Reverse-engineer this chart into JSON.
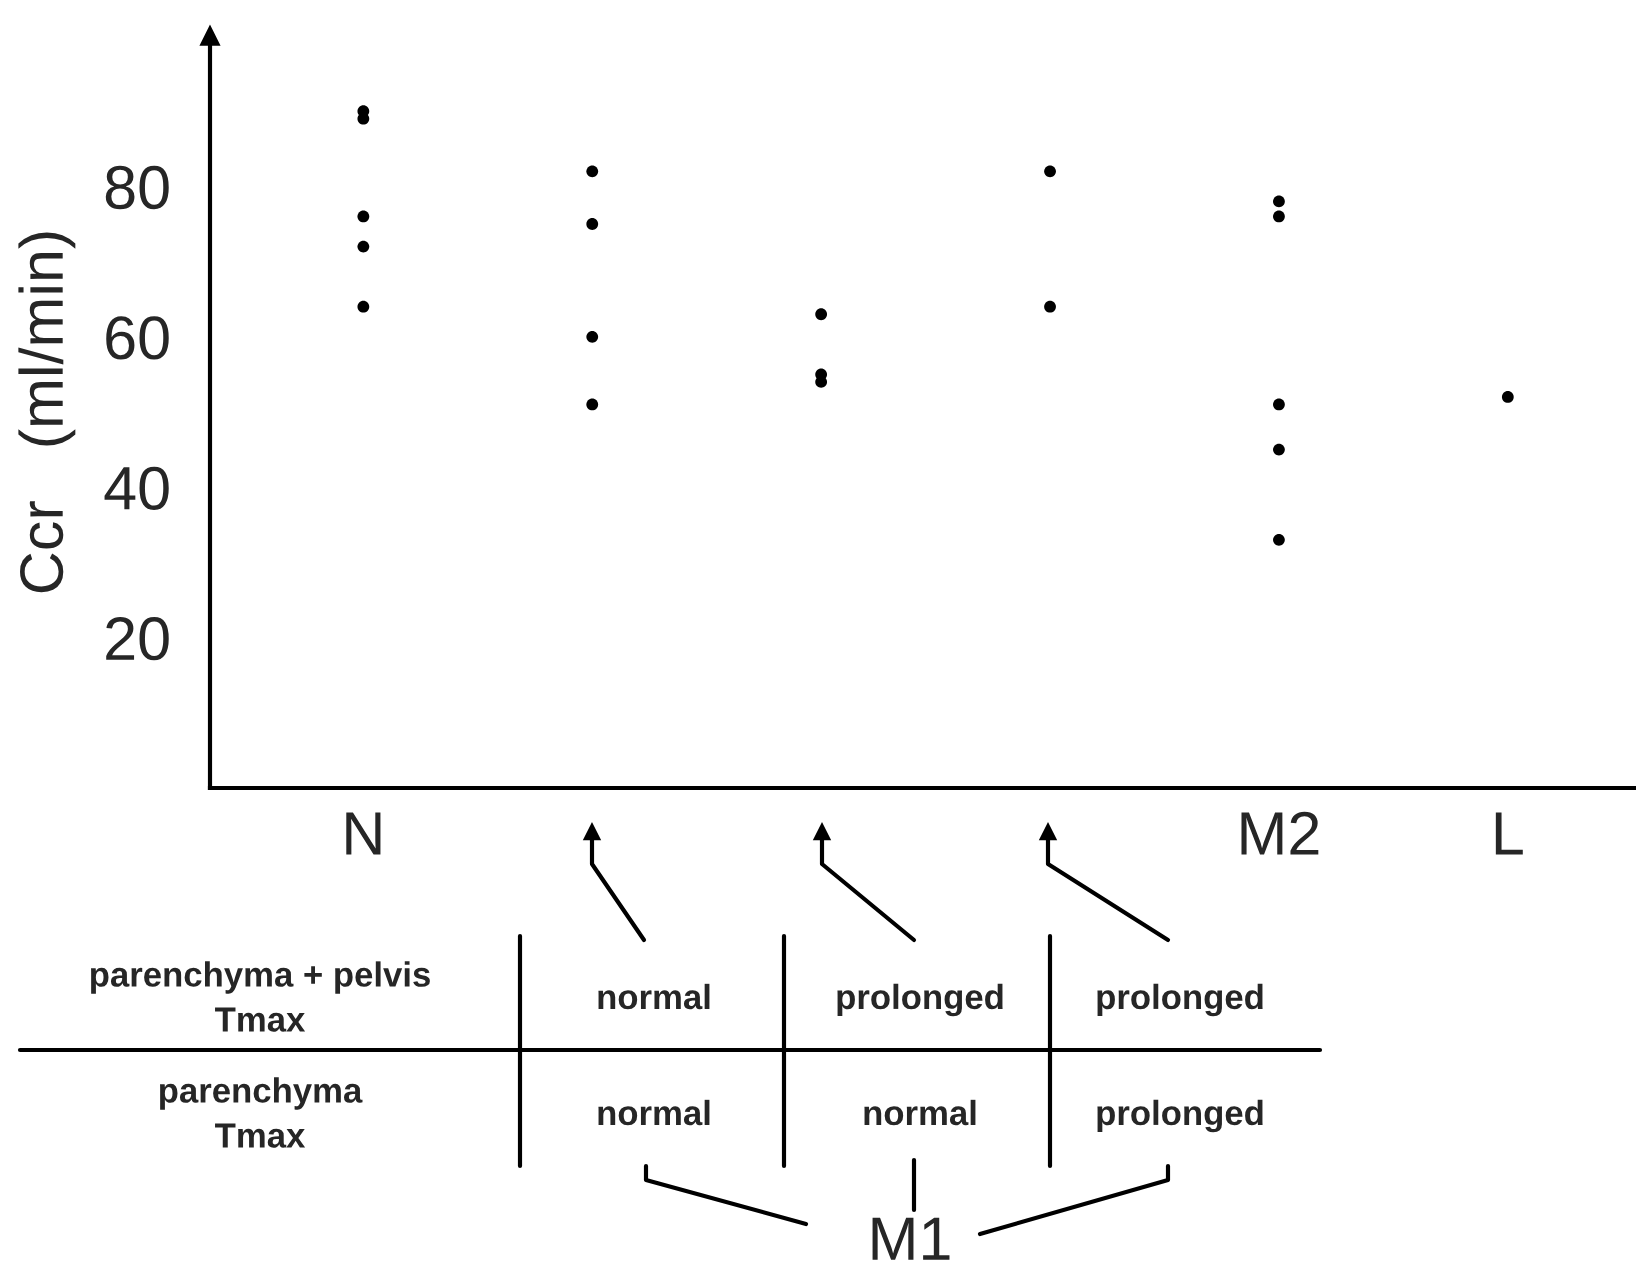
{
  "chart_data": {
    "type": "scatter",
    "ylabel": "Ccr   (ml/min)",
    "categories": [
      "N",
      null,
      null,
      null,
      "M2",
      "L"
    ],
    "series": [
      {
        "color": "#000000",
        "values": [
          90,
          82,
          63,
          82,
          78,
          52
        ]
      },
      {
        "color": "#000000",
        "values": [
          89,
          75,
          55,
          64,
          76,
          null
        ]
      },
      {
        "color": "#000000",
        "values": [
          76,
          60,
          54,
          null,
          51,
          null
        ]
      },
      {
        "color": "#000000",
        "values": [
          72,
          51,
          null,
          null,
          45,
          null
        ]
      },
      {
        "color": "#000000",
        "values": [
          64,
          null,
          null,
          null,
          33,
          null
        ]
      }
    ],
    "ylim": [
      0,
      100
    ],
    "yticks": [
      20,
      40,
      60,
      80
    ],
    "marker": "circle",
    "grid": false,
    "legend": false,
    "annotations": [
      "parenchyma + pelvis\nTmax",
      "normal",
      "prolonged",
      "prolonged",
      "parenchyma\nTmax",
      "normal",
      "normal",
      "prolonged",
      "M1"
    ]
  }
}
